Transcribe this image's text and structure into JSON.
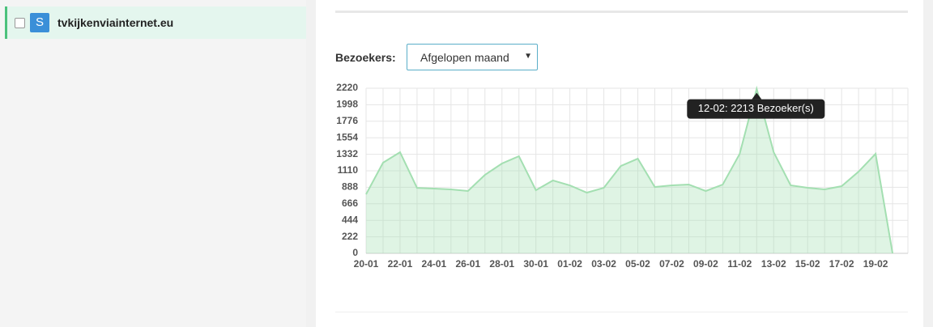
{
  "sidebar": {
    "items": [
      {
        "icon": "S",
        "label": "tvkijkenviainternet.eu"
      }
    ]
  },
  "filter": {
    "label": "Bezoekers:",
    "selected": "Afgelopen maand"
  },
  "chart_data": {
    "type": "area",
    "categories": [
      "20-01",
      null,
      "22-01",
      null,
      "24-01",
      null,
      "26-01",
      null,
      "28-01",
      null,
      "30-01",
      null,
      "01-02",
      null,
      "03-02",
      null,
      "05-02",
      null,
      "07-02",
      null,
      "09-02",
      null,
      "11-02",
      null,
      "13-02",
      null,
      "15-02",
      null,
      "17-02",
      null,
      "19-02",
      null
    ],
    "values": [
      794,
      1219,
      1360,
      880,
      870,
      860,
      838,
      1055,
      1208,
      1306,
      849,
      980,
      914,
      816,
      881,
      1175,
      1273,
      892,
      914,
      925,
      838,
      925,
      1338,
      2213,
      1360,
      914,
      881,
      860,
      903,
      1099,
      1338,
      0
    ],
    "color": "#a3dfb1",
    "ylim": [
      0,
      2220
    ],
    "yticks": [
      0,
      222,
      444,
      666,
      888,
      1110,
      1332,
      1554,
      1776,
      1998,
      2220
    ],
    "grid": true,
    "tooltip": "12-02: 2213 Bezoeker(s)"
  }
}
